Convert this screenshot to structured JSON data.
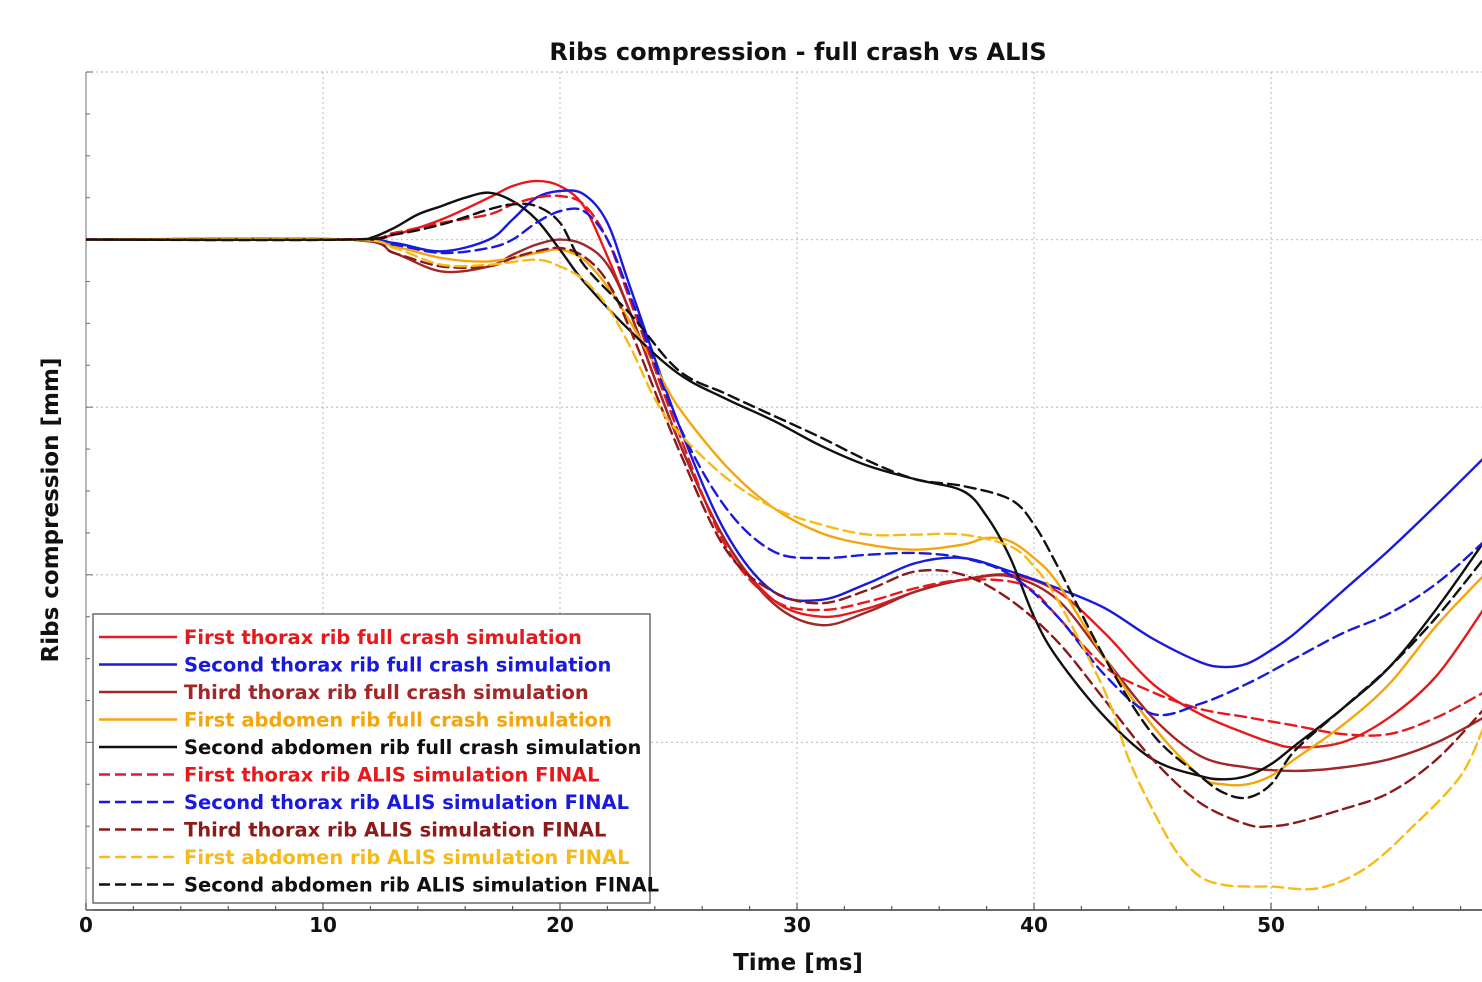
{
  "chart_data": {
    "type": "line",
    "title": "Ribs compression - full crash vs ALIS",
    "xlabel": "Time [ms]",
    "ylabel": "Ribs compression [mm]",
    "xlim": [
      0,
      59
    ],
    "ylim": [
      -40,
      10
    ],
    "x_ticks": [
      0,
      10,
      20,
      30,
      40,
      50
    ],
    "y_ticks_labeled": false,
    "grid": true,
    "legend_position": "bottom-left",
    "series": [
      {
        "name": "First thorax rib full crash simulation",
        "color": "#e8191c",
        "dash": "solid",
        "x": [
          0,
          11,
          13,
          15,
          17,
          18,
          19,
          20,
          21,
          22,
          23,
          25,
          27,
          29,
          31,
          33,
          35,
          37,
          39,
          41,
          43,
          45,
          47,
          49,
          50,
          51,
          53,
          55,
          57,
          59
        ],
        "y": [
          0,
          0,
          0.3,
          1.2,
          2.5,
          3.2,
          3.5,
          3.2,
          2,
          -1,
          -4.5,
          -12,
          -18,
          -21.5,
          -22.5,
          -22,
          -21,
          -20.3,
          -20,
          -21,
          -23.5,
          -26.5,
          -28.3,
          -29.5,
          -30,
          -30.3,
          -30,
          -28.5,
          -26,
          -22
        ]
      },
      {
        "name": "Second thorax rib full crash simulation",
        "color": "#1a1adc",
        "dash": "solid",
        "x": [
          0,
          11,
          13,
          15,
          17,
          18,
          19,
          20,
          21,
          22,
          23,
          25,
          27,
          29,
          31,
          33,
          35,
          37,
          39,
          41,
          43,
          45,
          47,
          48,
          49,
          50,
          51,
          53,
          55,
          57,
          59
        ],
        "y": [
          0,
          0,
          -0.2,
          -0.7,
          0,
          1.2,
          2.5,
          2.9,
          2.7,
          1,
          -3,
          -11,
          -17.5,
          -21,
          -21.5,
          -20.5,
          -19.3,
          -19,
          -19.8,
          -20.8,
          -22,
          -23.8,
          -25.2,
          -25.5,
          -25.3,
          -24.5,
          -23.5,
          -21,
          -18.5,
          -15.8,
          -13
        ]
      },
      {
        "name": "Third thorax rib full crash simulation",
        "color": "#a02828",
        "dash": "solid",
        "x": [
          0,
          11,
          13,
          15,
          17,
          18,
          19,
          20,
          21,
          22,
          23,
          25,
          27,
          29,
          31,
          33,
          35,
          37,
          39,
          41,
          43,
          45,
          47,
          49,
          51,
          53,
          55,
          57,
          59
        ],
        "y": [
          0,
          0,
          -0.8,
          -1.9,
          -1.6,
          -0.9,
          -0.3,
          0,
          -0.3,
          -1.5,
          -4.5,
          -12,
          -18,
          -21.7,
          -23,
          -22.2,
          -21,
          -20.3,
          -20.1,
          -21.5,
          -25,
          -28.5,
          -30.8,
          -31.5,
          -31.7,
          -31.5,
          -31,
          -30,
          -28.5
        ]
      },
      {
        "name": "First abdomen rib full crash simulation",
        "color": "#f5a50c",
        "dash": "solid",
        "x": [
          0,
          11,
          13,
          15,
          17,
          19,
          20,
          21,
          22,
          23,
          24,
          25,
          27,
          29,
          31,
          33,
          35,
          37,
          38,
          39,
          40,
          41,
          43,
          45,
          47,
          48,
          49,
          50,
          51,
          53,
          55,
          57,
          59
        ],
        "y": [
          0,
          0,
          -0.4,
          -1.1,
          -1.3,
          -0.8,
          -0.6,
          -1.2,
          -2.8,
          -5,
          -7.5,
          -10,
          -13.5,
          -16,
          -17.5,
          -18.2,
          -18.5,
          -18.2,
          -17.8,
          -18,
          -19,
          -20.5,
          -25,
          -29,
          -32,
          -32.5,
          -32.5,
          -32,
          -31,
          -29,
          -26.5,
          -23,
          -20
        ]
      },
      {
        "name": "Second abdomen rib full crash simulation",
        "color": "#101010",
        "dash": "solid",
        "x": [
          0,
          11,
          12,
          13,
          14,
          15,
          16,
          17,
          18,
          19,
          20,
          21,
          23,
          25,
          27,
          29,
          31,
          33,
          35,
          37,
          38,
          39,
          40,
          41,
          43,
          45,
          47,
          48,
          49,
          50,
          51,
          53,
          55,
          57,
          59
        ],
        "y": [
          0,
          0,
          0.1,
          0.7,
          1.5,
          2,
          2.5,
          2.8,
          2.3,
          1.2,
          -0.6,
          -2.5,
          -5.5,
          -8,
          -9.5,
          -10.8,
          -12.3,
          -13.5,
          -14.3,
          -15,
          -16.5,
          -19,
          -22.5,
          -25,
          -28.5,
          -31,
          -32,
          -32.2,
          -32,
          -31.3,
          -30.2,
          -28,
          -25.5,
          -22,
          -18
        ]
      },
      {
        "name": "First thorax rib ALIS simulation FINAL",
        "color": "#e8191c",
        "dash": "dashed",
        "x": [
          0,
          11,
          13,
          15,
          17,
          18,
          19,
          20,
          21,
          22,
          23,
          25,
          27,
          29,
          31,
          33,
          35,
          37,
          39,
          40,
          41,
          43,
          45,
          47,
          49,
          51,
          53,
          55,
          57,
          59
        ],
        "y": [
          0,
          0,
          0.4,
          1,
          1.5,
          2.1,
          2.5,
          2.6,
          2.1,
          0,
          -3.8,
          -11.5,
          -18.3,
          -21.5,
          -22.1,
          -21.6,
          -20.8,
          -20.3,
          -20.4,
          -21,
          -22.5,
          -25.5,
          -27,
          -28,
          -28.5,
          -29,
          -29.5,
          -29.5,
          -28.5,
          -27
        ]
      },
      {
        "name": "Second thorax rib ALIS simulation FINAL",
        "color": "#1a1adc",
        "dash": "dashed",
        "x": [
          0,
          11,
          13,
          15,
          17,
          18,
          19,
          20,
          21,
          22,
          23,
          25,
          27,
          29,
          31,
          33,
          35,
          37,
          39,
          41,
          43,
          45,
          47,
          49,
          51,
          53,
          55,
          57,
          59
        ],
        "y": [
          0,
          0,
          -0.3,
          -0.8,
          -0.5,
          0,
          1,
          1.7,
          1.7,
          0,
          -3.5,
          -11,
          -16,
          -18.6,
          -19,
          -18.8,
          -18.7,
          -19,
          -20,
          -22.5,
          -26,
          -28.3,
          -27.7,
          -26.5,
          -25,
          -23.5,
          -22.3,
          -20.5,
          -18
        ]
      },
      {
        "name": "Third thorax rib ALIS simulation FINAL",
        "color": "#8b1a1a",
        "dash": "dashed",
        "x": [
          0,
          11,
          13,
          15,
          17,
          18,
          19,
          20,
          21,
          22,
          23,
          25,
          27,
          29,
          31,
          33,
          35,
          37,
          39,
          41,
          43,
          45,
          47,
          49,
          50,
          51,
          53,
          55,
          57,
          59
        ],
        "y": [
          0,
          0,
          -0.8,
          -1.6,
          -1.6,
          -1.1,
          -0.7,
          -0.5,
          -1,
          -2.5,
          -5.5,
          -12.5,
          -18.5,
          -21,
          -21.7,
          -20.9,
          -19.8,
          -20,
          -21.5,
          -24,
          -27.5,
          -31,
          -33.6,
          -34.9,
          -35,
          -34.8,
          -34,
          -33,
          -31,
          -28
        ]
      },
      {
        "name": "First abdomen rib ALIS simulation FINAL",
        "color": "#f7bb17",
        "dash": "dashed",
        "x": [
          0,
          11,
          13,
          15,
          17,
          19,
          20,
          21,
          22,
          23,
          24,
          25,
          27,
          29,
          31,
          33,
          35,
          37,
          39,
          40,
          41,
          43,
          44,
          45,
          46,
          47,
          48,
          49,
          50,
          52,
          54,
          56,
          58,
          59
        ],
        "y": [
          0,
          0,
          -0.5,
          -1.5,
          -1.5,
          -1.2,
          -1.6,
          -2.4,
          -4,
          -6.5,
          -9.5,
          -11.5,
          -14.2,
          -16,
          -17,
          -17.6,
          -17.6,
          -17.6,
          -18.3,
          -19.5,
          -21.5,
          -27,
          -31,
          -34,
          -36.5,
          -38,
          -38.5,
          -38.6,
          -38.6,
          -38.7,
          -37.5,
          -35,
          -32,
          -29
        ]
      },
      {
        "name": "Second abdomen rib ALIS simulation FINAL",
        "color": "#101010",
        "dash": "dashed",
        "x": [
          0,
          11,
          13,
          15,
          17,
          18,
          19,
          20,
          21,
          23,
          25,
          27,
          29,
          31,
          33,
          35,
          37,
          39,
          40,
          41,
          43,
          45,
          47,
          48,
          49,
          50,
          51,
          53,
          55,
          57,
          59
        ],
        "y": [
          0,
          0,
          0.3,
          0.9,
          1.8,
          2.1,
          2,
          1,
          -1.5,
          -4.5,
          -7.8,
          -9.2,
          -10.5,
          -11.8,
          -13.2,
          -14.3,
          -14.7,
          -15.5,
          -17,
          -19.5,
          -25,
          -29.5,
          -32,
          -33,
          -33.3,
          -32.5,
          -30.5,
          -28,
          -25.5,
          -22.5,
          -19
        ]
      }
    ]
  }
}
